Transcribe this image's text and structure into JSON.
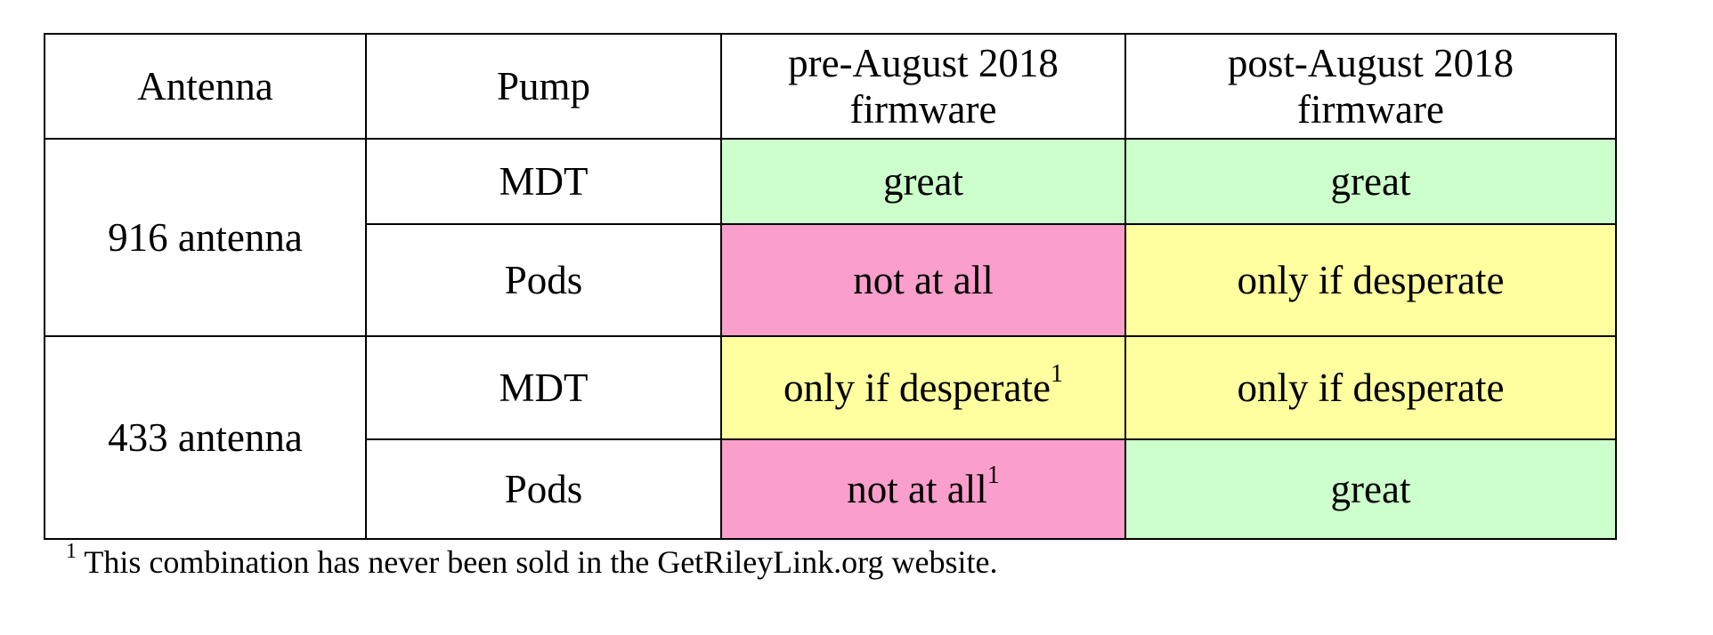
{
  "table": {
    "headers": {
      "antenna": "Antenna",
      "pump": "Pump",
      "pre_line1": "pre-August 2018",
      "pre_line2": "firmware",
      "post_line1": "post-August 2018",
      "post_line2": "firmware"
    },
    "groups": [
      {
        "antenna": "916 antenna",
        "rows": [
          {
            "pump": "MDT",
            "pre": "great",
            "pre_mark": "",
            "post": "great",
            "post_mark": ""
          },
          {
            "pump": "Pods",
            "pre": "not at all",
            "pre_mark": "",
            "post": "only if desperate",
            "post_mark": ""
          }
        ]
      },
      {
        "antenna": "433 antenna",
        "rows": [
          {
            "pump": "MDT",
            "pre": "only if desperate",
            "pre_mark": "1",
            "post": "only if desperate",
            "post_mark": ""
          },
          {
            "pump": "Pods",
            "pre": "not at all",
            "pre_mark": "1",
            "post": "great",
            "post_mark": ""
          }
        ]
      }
    ],
    "status_colors": {
      "great": "#ccffcc",
      "only if desperate": "#ffff9f",
      "not at all": "#fa9ecb"
    }
  },
  "footnote": {
    "mark": "1",
    "text": " This combination has never been sold in the GetRileyLink.org website."
  }
}
